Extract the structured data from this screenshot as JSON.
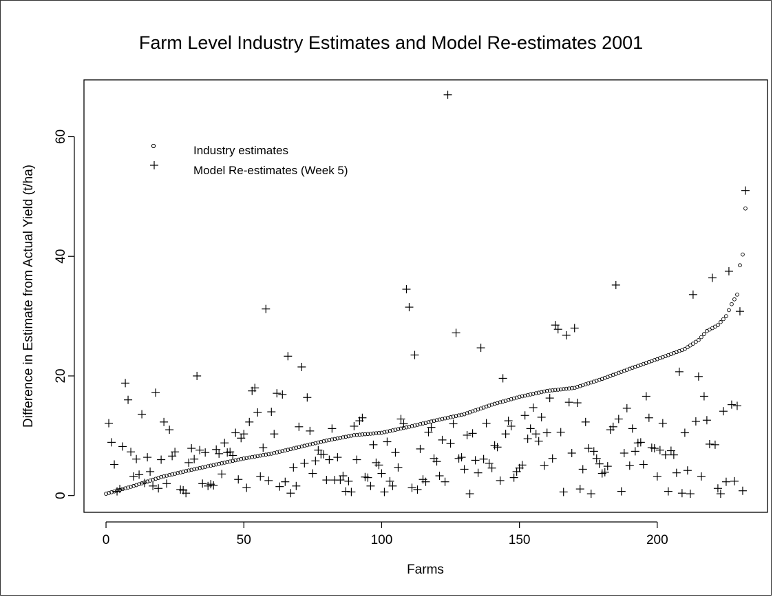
{
  "chart_data": {
    "type": "scatter",
    "title": "Farm Level Industry Estimates and Model Re-estimates 2001",
    "xlabel": "Farms",
    "ylabel": "Difference in Estimate from Actual Yield (t/ha)",
    "xlim": [
      -8,
      240
    ],
    "ylim": [
      -2.8,
      69.5
    ],
    "xticks": [
      0,
      50,
      100,
      150,
      200
    ],
    "yticks": [
      0,
      20,
      40,
      60
    ],
    "legend": {
      "position": "top-left",
      "entries": [
        "Industry estimates",
        "Model Re-estimates (Week 5)"
      ]
    },
    "series": [
      {
        "name": "Industry estimates",
        "marker": "circle",
        "n_points": 233,
        "sorted_curve": [
          [
            0,
            0.3
          ],
          [
            10,
            1.6
          ],
          [
            20,
            3.1
          ],
          [
            30,
            4.2
          ],
          [
            40,
            5.2
          ],
          [
            50,
            6.2
          ],
          [
            60,
            7.0
          ],
          [
            70,
            8.1
          ],
          [
            80,
            9.2
          ],
          [
            90,
            10.1
          ],
          [
            100,
            10.5
          ],
          [
            110,
            11.5
          ],
          [
            120,
            12.6
          ],
          [
            130,
            13.6
          ],
          [
            140,
            15.2
          ],
          [
            150,
            16.5
          ],
          [
            160,
            17.5
          ],
          [
            170,
            18.0
          ],
          [
            180,
            19.5
          ],
          [
            190,
            21.2
          ],
          [
            200,
            22.8
          ],
          [
            210,
            24.5
          ],
          [
            215,
            26.0
          ],
          [
            218,
            27.5
          ],
          [
            222,
            28.5
          ],
          [
            225,
            30.0
          ],
          [
            227,
            32.0
          ],
          [
            229,
            33.6
          ],
          [
            230,
            38.5
          ],
          [
            231,
            40.3
          ],
          [
            232,
            48.0
          ]
        ]
      },
      {
        "name": "Model Re-estimates (Week 5)",
        "marker": "plus",
        "points": [
          [
            1,
            12.1
          ],
          [
            2,
            8.9
          ],
          [
            3,
            5.2
          ],
          [
            4,
            0.7
          ],
          [
            5,
            1.1
          ],
          [
            6,
            8.2
          ],
          [
            7,
            18.8
          ],
          [
            8,
            16.0
          ],
          [
            9,
            7.3
          ],
          [
            10,
            3.2
          ],
          [
            11,
            6.1
          ],
          [
            12,
            3.5
          ],
          [
            13,
            13.6
          ],
          [
            14,
            2.1
          ],
          [
            15,
            6.4
          ],
          [
            16,
            4.0
          ],
          [
            17,
            1.6
          ],
          [
            18,
            17.2
          ],
          [
            19,
            1.2
          ],
          [
            20,
            6.0
          ],
          [
            21,
            12.3
          ],
          [
            22,
            2.0
          ],
          [
            23,
            11.0
          ],
          [
            24,
            6.6
          ],
          [
            25,
            7.3
          ],
          [
            27,
            1.0
          ],
          [
            28,
            0.9
          ],
          [
            29,
            0.4
          ],
          [
            30,
            5.5
          ],
          [
            31,
            7.9
          ],
          [
            32,
            6.1
          ],
          [
            33,
            20.0
          ],
          [
            34,
            7.6
          ],
          [
            35,
            2.0
          ],
          [
            36,
            7.2
          ],
          [
            37,
            1.6
          ],
          [
            38,
            1.9
          ],
          [
            39,
            1.7
          ],
          [
            40,
            7.7
          ],
          [
            41,
            7.0
          ],
          [
            42,
            3.6
          ],
          [
            43,
            8.8
          ],
          [
            44,
            7.2
          ],
          [
            45,
            7.3
          ],
          [
            46,
            6.7
          ],
          [
            47,
            10.5
          ],
          [
            48,
            2.7
          ],
          [
            49,
            9.6
          ],
          [
            50,
            10.3
          ],
          [
            51,
            1.3
          ],
          [
            52,
            12.3
          ],
          [
            53,
            17.5
          ],
          [
            54,
            18.0
          ],
          [
            55,
            13.9
          ],
          [
            56,
            3.2
          ],
          [
            57,
            8.0
          ],
          [
            58,
            31.2
          ],
          [
            59,
            2.5
          ],
          [
            60,
            14.0
          ],
          [
            61,
            10.3
          ],
          [
            62,
            17.1
          ],
          [
            63,
            1.5
          ],
          [
            64,
            16.9
          ],
          [
            65,
            2.3
          ],
          [
            66,
            23.3
          ],
          [
            67,
            0.4
          ],
          [
            68,
            4.7
          ],
          [
            69,
            1.6
          ],
          [
            70,
            11.5
          ],
          [
            71,
            21.5
          ],
          [
            72,
            5.4
          ],
          [
            73,
            16.4
          ],
          [
            74,
            10.8
          ],
          [
            75,
            3.7
          ],
          [
            76,
            5.8
          ],
          [
            77,
            7.6
          ],
          [
            78,
            6.9
          ],
          [
            79,
            6.9
          ],
          [
            80,
            2.6
          ],
          [
            81,
            6.0
          ],
          [
            82,
            11.2
          ],
          [
            83,
            2.6
          ],
          [
            84,
            6.4
          ],
          [
            85,
            2.6
          ],
          [
            86,
            3.3
          ],
          [
            87,
            0.7
          ],
          [
            88,
            2.4
          ],
          [
            89,
            0.6
          ],
          [
            90,
            11.6
          ],
          [
            91,
            6.0
          ],
          [
            92,
            12.5
          ],
          [
            93,
            13.0
          ],
          [
            94,
            3.1
          ],
          [
            95,
            3.0
          ],
          [
            96,
            1.6
          ],
          [
            97,
            8.5
          ],
          [
            98,
            5.5
          ],
          [
            99,
            5.1
          ],
          [
            100,
            3.7
          ],
          [
            101,
            0.6
          ],
          [
            102,
            9.0
          ],
          [
            103,
            2.4
          ],
          [
            104,
            1.6
          ],
          [
            105,
            7.2
          ],
          [
            106,
            4.7
          ],
          [
            107,
            12.8
          ],
          [
            108,
            12.0
          ],
          [
            109,
            34.5
          ],
          [
            110,
            31.5
          ],
          [
            111,
            1.3
          ],
          [
            112,
            23.5
          ],
          [
            113,
            1.0
          ],
          [
            114,
            7.8
          ],
          [
            115,
            2.7
          ],
          [
            116,
            2.3
          ],
          [
            117,
            10.6
          ],
          [
            118,
            11.4
          ],
          [
            119,
            6.2
          ],
          [
            120,
            5.7
          ],
          [
            121,
            3.3
          ],
          [
            122,
            9.3
          ],
          [
            123,
            2.3
          ],
          [
            124,
            67.0
          ],
          [
            125,
            8.7
          ],
          [
            126,
            12.0
          ],
          [
            127,
            27.2
          ],
          [
            128,
            6.2
          ],
          [
            129,
            6.4
          ],
          [
            130,
            4.4
          ],
          [
            131,
            10.1
          ],
          [
            132,
            0.3
          ],
          [
            133,
            10.4
          ],
          [
            134,
            5.9
          ],
          [
            135,
            3.8
          ],
          [
            136,
            24.7
          ],
          [
            137,
            6.1
          ],
          [
            138,
            12.1
          ],
          [
            139,
            5.4
          ],
          [
            140,
            4.6
          ],
          [
            141,
            8.4
          ],
          [
            142,
            8.1
          ],
          [
            143,
            2.5
          ],
          [
            144,
            19.6
          ],
          [
            145,
            10.3
          ],
          [
            146,
            12.5
          ],
          [
            147,
            11.6
          ],
          [
            148,
            3.0
          ],
          [
            149,
            4.0
          ],
          [
            150,
            4.6
          ],
          [
            151,
            5.1
          ],
          [
            152,
            13.4
          ],
          [
            153,
            9.5
          ],
          [
            154,
            11.2
          ],
          [
            155,
            14.7
          ],
          [
            156,
            10.3
          ],
          [
            157,
            9.1
          ],
          [
            158,
            13.1
          ],
          [
            159,
            5.0
          ],
          [
            160,
            10.5
          ],
          [
            161,
            16.3
          ],
          [
            162,
            6.2
          ],
          [
            163,
            28.5
          ],
          [
            164,
            27.8
          ],
          [
            165,
            10.6
          ],
          [
            166,
            0.6
          ],
          [
            167,
            26.8
          ],
          [
            168,
            15.6
          ],
          [
            169,
            7.1
          ],
          [
            170,
            28.0
          ],
          [
            171,
            15.5
          ],
          [
            172,
            1.1
          ],
          [
            173,
            4.4
          ],
          [
            174,
            12.3
          ],
          [
            175,
            7.9
          ],
          [
            176,
            0.3
          ],
          [
            177,
            7.4
          ],
          [
            178,
            6.2
          ],
          [
            179,
            5.3
          ],
          [
            180,
            3.7
          ],
          [
            181,
            3.9
          ],
          [
            182,
            4.9
          ],
          [
            183,
            11.0
          ],
          [
            184,
            11.5
          ],
          [
            185,
            35.2
          ],
          [
            186,
            12.8
          ],
          [
            187,
            0.7
          ],
          [
            188,
            7.1
          ],
          [
            189,
            14.6
          ],
          [
            190,
            5.0
          ],
          [
            191,
            11.2
          ],
          [
            192,
            7.4
          ],
          [
            193,
            8.8
          ],
          [
            194,
            8.9
          ],
          [
            195,
            5.2
          ],
          [
            196,
            16.6
          ],
          [
            197,
            13.0
          ],
          [
            198,
            8.0
          ],
          [
            199,
            7.9
          ],
          [
            200,
            3.2
          ],
          [
            201,
            7.6
          ],
          [
            202,
            12.1
          ],
          [
            203,
            6.8
          ],
          [
            204,
            0.7
          ],
          [
            205,
            7.5
          ],
          [
            206,
            6.8
          ],
          [
            207,
            3.8
          ],
          [
            208,
            20.7
          ],
          [
            209,
            0.4
          ],
          [
            210,
            10.5
          ],
          [
            211,
            4.2
          ],
          [
            212,
            0.3
          ],
          [
            213,
            33.6
          ],
          [
            214,
            12.4
          ],
          [
            215,
            19.9
          ],
          [
            216,
            3.2
          ],
          [
            217,
            16.6
          ],
          [
            218,
            12.6
          ],
          [
            219,
            8.6
          ],
          [
            220,
            36.4
          ],
          [
            221,
            8.5
          ],
          [
            222,
            1.2
          ],
          [
            223,
            0.3
          ],
          [
            224,
            14.1
          ],
          [
            225,
            2.3
          ],
          [
            226,
            37.5
          ],
          [
            227,
            15.2
          ],
          [
            228,
            2.4
          ],
          [
            229,
            15.0
          ],
          [
            230,
            30.8
          ],
          [
            231,
            0.8
          ],
          [
            232,
            51.0
          ]
        ]
      }
    ]
  }
}
